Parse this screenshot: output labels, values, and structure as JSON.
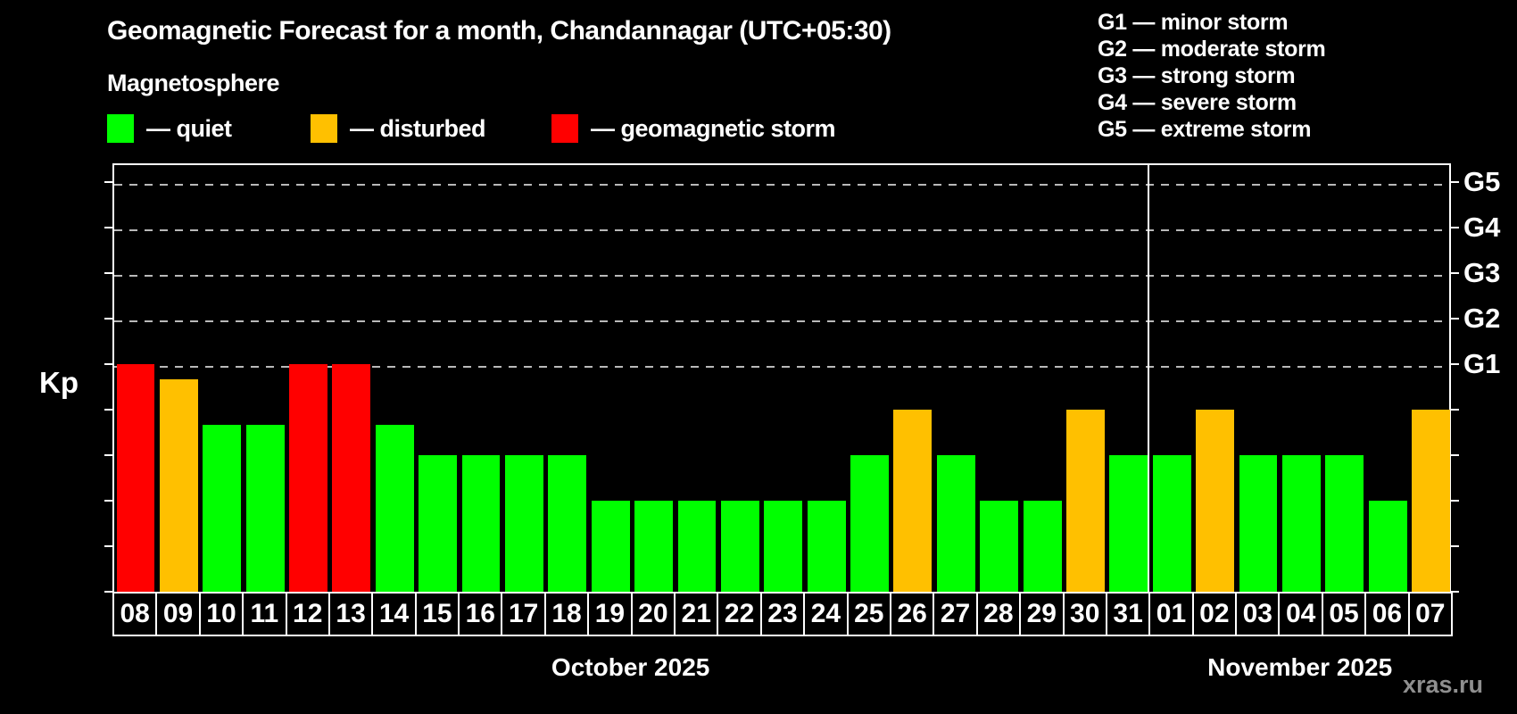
{
  "page": {
    "title": "Geomagnetic Forecast for a month, Chandannagar (UTC+05:30)",
    "subtitle": "Magnetosphere",
    "watermark": "xras.ru"
  },
  "legend": {
    "items": [
      {
        "key": "quiet",
        "label": "— quiet"
      },
      {
        "key": "disturbed",
        "label": "— disturbed"
      },
      {
        "key": "storm",
        "label": "— geomagnetic storm"
      }
    ]
  },
  "g_legend": {
    "lines": [
      "G1 — minor storm",
      "G2 — moderate storm",
      "G3 — strong storm",
      "G4 — severe storm",
      "G5 — extreme storm"
    ]
  },
  "chart_data": {
    "type": "bar",
    "title": "Geomagnetic Forecast for a month, Chandannagar (UTC+05:30)",
    "ylabel": "Kp",
    "ylim": [
      0,
      9.4
    ],
    "yticks": [
      0,
      1,
      2,
      3,
      4,
      5,
      6,
      7,
      8,
      9
    ],
    "grid_levels": [
      5,
      6,
      7,
      8,
      9
    ],
    "grid_style": "dashed-horizontal",
    "right_axis": [
      {
        "kp": 5,
        "label": "G1"
      },
      {
        "kp": 6,
        "label": "G2"
      },
      {
        "kp": 7,
        "label": "G3"
      },
      {
        "kp": 8,
        "label": "G4"
      },
      {
        "kp": 9,
        "label": "G5"
      }
    ],
    "colors": {
      "quiet": "#00ff00",
      "disturbed": "#ffc000",
      "storm": "#ff0000"
    },
    "months": [
      {
        "label": "October 2025",
        "count": 24
      },
      {
        "label": "November 2025",
        "count": 7
      }
    ],
    "bars": [
      {
        "day": "08",
        "kp": 5,
        "status": "storm"
      },
      {
        "day": "09",
        "kp": 4.67,
        "status": "disturbed"
      },
      {
        "day": "10",
        "kp": 3.67,
        "status": "quiet"
      },
      {
        "day": "11",
        "kp": 3.67,
        "status": "quiet"
      },
      {
        "day": "12",
        "kp": 5,
        "status": "storm"
      },
      {
        "day": "13",
        "kp": 5,
        "status": "storm"
      },
      {
        "day": "14",
        "kp": 3.67,
        "status": "quiet"
      },
      {
        "day": "15",
        "kp": 3,
        "status": "quiet"
      },
      {
        "day": "16",
        "kp": 3,
        "status": "quiet"
      },
      {
        "day": "17",
        "kp": 3,
        "status": "quiet"
      },
      {
        "day": "18",
        "kp": 3,
        "status": "quiet"
      },
      {
        "day": "19",
        "kp": 2,
        "status": "quiet"
      },
      {
        "day": "20",
        "kp": 2,
        "status": "quiet"
      },
      {
        "day": "21",
        "kp": 2,
        "status": "quiet"
      },
      {
        "day": "22",
        "kp": 2,
        "status": "quiet"
      },
      {
        "day": "23",
        "kp": 2,
        "status": "quiet"
      },
      {
        "day": "24",
        "kp": 2,
        "status": "quiet"
      },
      {
        "day": "25",
        "kp": 3,
        "status": "quiet"
      },
      {
        "day": "26",
        "kp": 4,
        "status": "disturbed"
      },
      {
        "day": "27",
        "kp": 3,
        "status": "quiet"
      },
      {
        "day": "28",
        "kp": 2,
        "status": "quiet"
      },
      {
        "day": "29",
        "kp": 2,
        "status": "quiet"
      },
      {
        "day": "30",
        "kp": 4,
        "status": "disturbed"
      },
      {
        "day": "31",
        "kp": 3,
        "status": "quiet"
      },
      {
        "day": "01",
        "kp": 3,
        "status": "quiet"
      },
      {
        "day": "02",
        "kp": 4,
        "status": "disturbed"
      },
      {
        "day": "03",
        "kp": 3,
        "status": "quiet"
      },
      {
        "day": "04",
        "kp": 3,
        "status": "quiet"
      },
      {
        "day": "05",
        "kp": 3,
        "status": "quiet"
      },
      {
        "day": "06",
        "kp": 2,
        "status": "quiet"
      },
      {
        "day": "07",
        "kp": 4,
        "status": "disturbed"
      }
    ]
  }
}
